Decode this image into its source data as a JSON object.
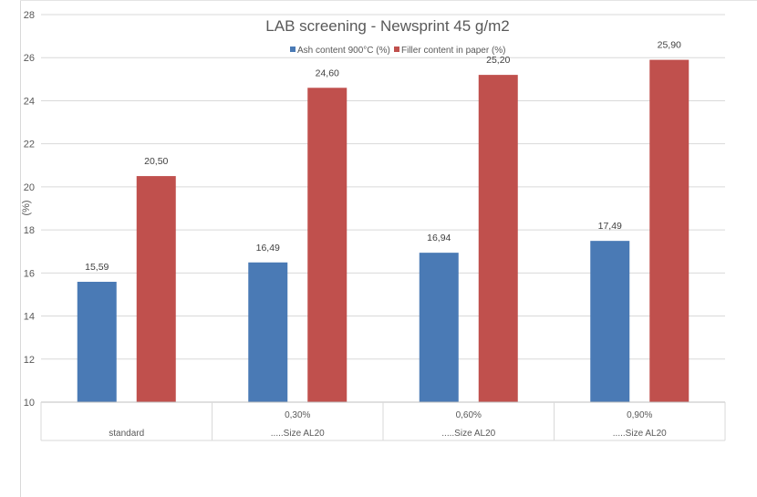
{
  "chart_data": {
    "type": "bar",
    "title": "LAB screening - Newsprint 45 g/m2",
    "ylabel": "(%)",
    "xlabel": "",
    "ylim": [
      10,
      28
    ],
    "yticks": [
      10,
      12,
      14,
      16,
      18,
      20,
      22,
      24,
      26,
      28
    ],
    "grid": true,
    "legend_position": "top",
    "categories": [
      {
        "top": "",
        "bottom": "standard"
      },
      {
        "top": "0,30%",
        "bottom": ".....Size AL20"
      },
      {
        "top": "0,60%",
        "bottom": ".....Size AL20"
      },
      {
        "top": "0,90%",
        "bottom": ".....Size AL20"
      }
    ],
    "series": [
      {
        "name": "Ash content 900°C (%)",
        "color": "#4a7ab5",
        "values": [
          15.59,
          16.49,
          16.94,
          17.49
        ],
        "labels": [
          "15,59",
          "16,49",
          "16,94",
          "17,49"
        ]
      },
      {
        "name": "Filler content in paper (%)",
        "color": "#c0504d",
        "values": [
          20.5,
          24.6,
          25.2,
          25.9
        ],
        "labels": [
          "20,50",
          "24,60",
          "25,20",
          "25,90"
        ]
      }
    ]
  }
}
